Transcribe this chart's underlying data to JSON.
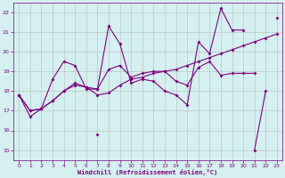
{
  "x": [
    0,
    1,
    2,
    3,
    4,
    5,
    6,
    7,
    8,
    9,
    10,
    11,
    12,
    13,
    14,
    15,
    16,
    17,
    18,
    19,
    20,
    21,
    22,
    23
  ],
  "line1": [
    17.8,
    16.7,
    17.1,
    18.6,
    19.5,
    19.3,
    18.1,
    18.1,
    21.3,
    20.4,
    18.4,
    18.6,
    18.5,
    18.0,
    17.8,
    17.3,
    20.5,
    19.9,
    22.2,
    21.1,
    21.1,
    null,
    null,
    21.7
  ],
  "line2": [
    null,
    null,
    null,
    null,
    null,
    null,
    null,
    15.8,
    null,
    null,
    null,
    null,
    null,
    null,
    null,
    null,
    null,
    null,
    null,
    null,
    null,
    15.0,
    18.0,
    null
  ],
  "line3": [
    17.8,
    17.0,
    17.1,
    17.5,
    18.0,
    18.4,
    18.2,
    17.8,
    17.9,
    18.3,
    18.6,
    18.7,
    18.9,
    19.0,
    19.1,
    19.3,
    19.5,
    19.7,
    19.9,
    20.1,
    20.3,
    20.5,
    20.7,
    20.9
  ],
  "line4": [
    17.8,
    17.0,
    17.1,
    17.5,
    18.0,
    18.3,
    18.2,
    18.1,
    19.1,
    19.3,
    18.7,
    18.9,
    19.0,
    19.0,
    18.5,
    18.3,
    19.2,
    19.5,
    18.8,
    18.9,
    18.9,
    18.9,
    null,
    null
  ],
  "color": "#800080",
  "bg_color": "#d4f0f0",
  "grid_color": "#b0b0b0",
  "xlabel": "Windchill (Refroidissement éolien,°C)",
  "xlim": [
    -0.5,
    23.5
  ],
  "ylim": [
    14.5,
    22.5
  ],
  "yticks": [
    15,
    16,
    17,
    18,
    19,
    20,
    21,
    22
  ],
  "xticks": [
    0,
    1,
    2,
    3,
    4,
    5,
    6,
    7,
    8,
    9,
    10,
    11,
    12,
    13,
    14,
    15,
    16,
    17,
    18,
    19,
    20,
    21,
    22,
    23
  ],
  "marker_size": 2.0,
  "line_width": 0.8,
  "tick_fontsize": 4.5,
  "xlabel_fontsize": 5.0
}
